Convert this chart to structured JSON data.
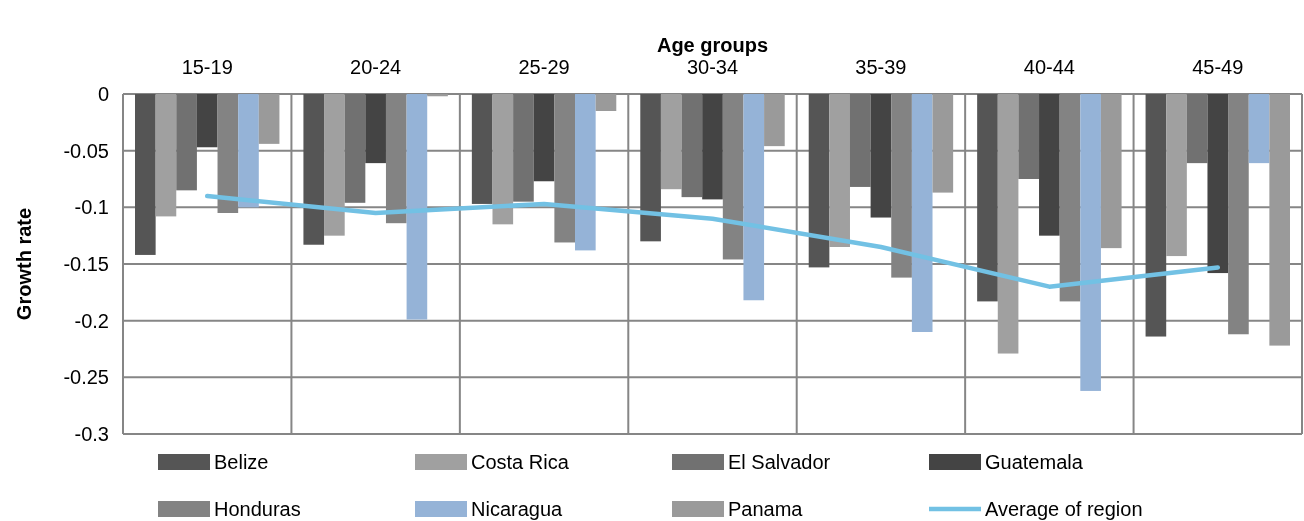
{
  "chart_data": {
    "type": "bar",
    "xlabel": "Age groups",
    "ylabel": "Growth rate",
    "categories": [
      "15-19",
      "20-24",
      "25-29",
      "30-34",
      "35-39",
      "40-44",
      "45-49"
    ],
    "series": [
      {
        "name": "Belize",
        "color": "#555555",
        "values": [
          -0.142,
          -0.133,
          -0.097,
          -0.13,
          -0.153,
          -0.183,
          -0.214
        ]
      },
      {
        "name": "Costa Rica",
        "color": "#a0a0a0",
        "values": [
          -0.108,
          -0.125,
          -0.115,
          -0.084,
          -0.135,
          -0.229,
          -0.143
        ]
      },
      {
        "name": "El Salvador",
        "color": "#717171",
        "values": [
          -0.085,
          -0.096,
          -0.095,
          -0.091,
          -0.082,
          -0.075,
          -0.061
        ]
      },
      {
        "name": "Guatemala",
        "color": "#444444",
        "values": [
          -0.047,
          -0.061,
          -0.077,
          -0.093,
          -0.109,
          -0.125,
          -0.158
        ]
      },
      {
        "name": "Honduras",
        "color": "#838383",
        "values": [
          -0.105,
          -0.114,
          -0.131,
          -0.146,
          -0.162,
          -0.183,
          -0.212
        ]
      },
      {
        "name": "Nicaragua",
        "color": "#95b3d7",
        "values": [
          -0.1,
          -0.199,
          -0.138,
          -0.182,
          -0.21,
          -0.262,
          -0.061
        ]
      },
      {
        "name": "Panama",
        "color": "#9a9a9a",
        "values": [
          -0.044,
          -0.002,
          -0.015,
          -0.046,
          -0.087,
          -0.136,
          -0.222
        ]
      },
      {
        "name": "Average of region",
        "type": "line",
        "color": "#72c1e4",
        "values": [
          -0.09,
          -0.105,
          -0.097,
          -0.11,
          -0.135,
          -0.17,
          -0.153
        ]
      }
    ],
    "ylim": [
      -0.3,
      0
    ],
    "yticks": [
      0,
      -0.05,
      -0.1,
      -0.15,
      -0.2,
      -0.25,
      -0.3
    ],
    "grid": true,
    "legend": "bottom"
  }
}
